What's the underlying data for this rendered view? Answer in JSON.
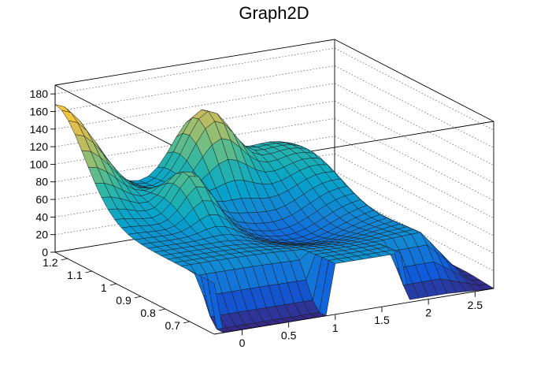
{
  "chart_data": {
    "type": "surface",
    "title": "Graph2D",
    "xlim": [
      -0.3,
      2.7
    ],
    "ylim": [
      0.6,
      1.25
    ],
    "zlim": [
      0,
      190
    ],
    "x_ticks": [
      "0",
      "0.5",
      "1",
      "1.5",
      "2",
      "2.5"
    ],
    "y_ticks": [
      "0.7",
      "0.8",
      "0.9",
      "1",
      "1.1",
      "1.2"
    ],
    "z_ticks": [
      "0",
      "20",
      "40",
      "60",
      "80",
      "100",
      "120",
      "140",
      "160",
      "180"
    ],
    "colormap": [
      "#352a87",
      "#0f5cdd",
      "#1481d6",
      "#06a4ca",
      "#2eb7a4",
      "#87bf77",
      "#d1bb59",
      "#fec832",
      "#f9fb0e"
    ],
    "grid": true,
    "surface_features": [
      {
        "x": -0.3,
        "y": 1.25,
        "z": 170
      },
      {
        "x": 0.6,
        "y": 1.0,
        "z": 100
      },
      {
        "x": 1.2,
        "y": 1.2,
        "z": 145
      },
      {
        "x": 2.0,
        "y": 1.15,
        "z": 100
      },
      {
        "x": 0.5,
        "y": 0.62,
        "z": 0
      }
    ]
  }
}
